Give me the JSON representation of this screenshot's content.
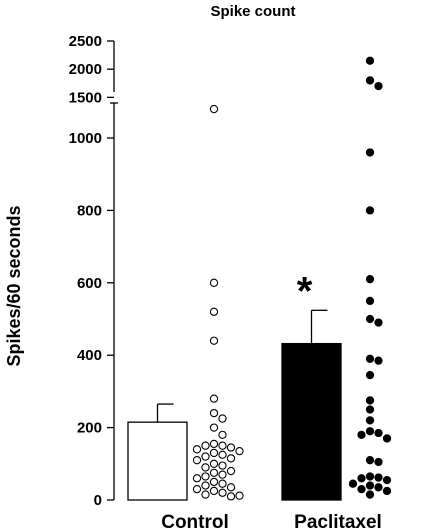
{
  "chart_data": {
    "type": "bar",
    "title": "Spike count",
    "ylabel": "Spikes/60 seconds",
    "xlabel": "",
    "y_break": true,
    "ylim_lower": [
      0,
      1050
    ],
    "ylim_upper": [
      1400,
      2500
    ],
    "yticks_lower": [
      0,
      200,
      400,
      600,
      800,
      1000
    ],
    "yticks_upper": [
      1500,
      2000,
      2500
    ],
    "categories": [
      "Control",
      "Paclitaxel"
    ],
    "series": [
      {
        "values": [
          215,
          432
        ],
        "errors": [
          50,
          92
        ],
        "fill": [
          "#ffffff",
          "#000000"
        ],
        "significance": [
          "",
          "*"
        ]
      }
    ],
    "points": [
      {
        "category": "Control",
        "style": "open",
        "values": [
          1080,
          600,
          520,
          440,
          280,
          240,
          225,
          200,
          180,
          155,
          150,
          150,
          145,
          140,
          135,
          130,
          125,
          120,
          115,
          110,
          100,
          95,
          90,
          80,
          75,
          70,
          65,
          60,
          50,
          45,
          40,
          35,
          30,
          25,
          20,
          15,
          12,
          10
        ]
      },
      {
        "category": "Paclitaxel",
        "style": "filled",
        "values": [
          2150,
          1800,
          1700,
          960,
          800,
          610,
          550,
          500,
          490,
          390,
          385,
          345,
          275,
          250,
          220,
          190,
          185,
          180,
          170,
          110,
          105,
          65,
          62,
          60,
          55,
          45,
          40,
          35,
          30,
          25,
          15
        ]
      }
    ]
  }
}
